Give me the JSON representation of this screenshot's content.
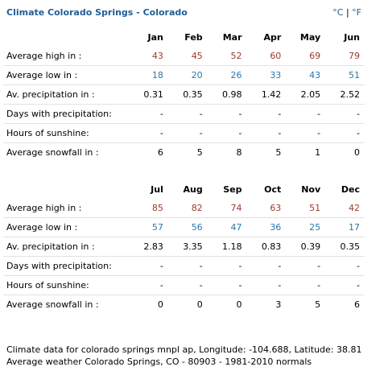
{
  "header": {
    "title": "Climate Colorado Springs - Colorado",
    "unit_celsius": "°C",
    "unit_separator": "|",
    "unit_fahrenheit": "°F"
  },
  "row_labels": {
    "high": "Average high in :",
    "low": "Average low in :",
    "precip": "Av. precipitation in :",
    "precip_days": "Days with precipitation:",
    "sunshine": "Hours of sunshine:",
    "snowfall": "Average snowfall in :"
  },
  "tables": [
    {
      "months": [
        "Jan",
        "Feb",
        "Mar",
        "Apr",
        "May",
        "Jun"
      ],
      "high": [
        "43",
        "45",
        "52",
        "60",
        "69",
        "79"
      ],
      "low": [
        "18",
        "20",
        "26",
        "33",
        "43",
        "51"
      ],
      "precip": [
        "0.31",
        "0.35",
        "0.98",
        "1.42",
        "2.05",
        "2.52"
      ],
      "precip_days": [
        "-",
        "-",
        "-",
        "-",
        "-",
        "-"
      ],
      "sunshine": [
        "-",
        "-",
        "-",
        "-",
        "-",
        "-"
      ],
      "snowfall": [
        "6",
        "5",
        "8",
        "5",
        "1",
        "0"
      ]
    },
    {
      "months": [
        "Jul",
        "Aug",
        "Sep",
        "Oct",
        "Nov",
        "Dec"
      ],
      "high": [
        "85",
        "82",
        "74",
        "63",
        "51",
        "42"
      ],
      "low": [
        "57",
        "56",
        "47",
        "36",
        "25",
        "17"
      ],
      "precip": [
        "2.83",
        "3.35",
        "1.18",
        "0.83",
        "0.39",
        "0.35"
      ],
      "precip_days": [
        "-",
        "-",
        "-",
        "-",
        "-",
        "-"
      ],
      "sunshine": [
        "-",
        "-",
        "-",
        "-",
        "-",
        "-"
      ],
      "snowfall": [
        "0",
        "0",
        "0",
        "3",
        "5",
        "6"
      ]
    }
  ],
  "footer": {
    "line1": "Climate data for colorado springs mnpl ap, Longitude: -104.688, Latitude: 38.81",
    "line2": "Average weather Colorado Springs, CO - 80903 - 1981-2010 normals"
  },
  "colors": {
    "title": "#1f5d95",
    "high": "#9b3a2f",
    "low": "#2a78aa",
    "divider": "#e2e2e2"
  }
}
